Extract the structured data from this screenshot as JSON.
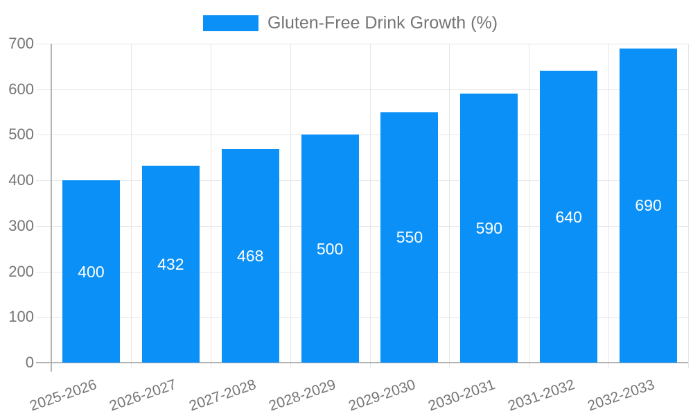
{
  "legend": {
    "label": "Gluten-Free Drink Growth (%)"
  },
  "chart_data": {
    "type": "bar",
    "title": "",
    "legend_position": "top",
    "categories": [
      "2025-2026",
      "2026-2027",
      "2027-2028",
      "2028-2029",
      "2029-2030",
      "2030-2031",
      "2031-2032",
      "2032-2033"
    ],
    "series": [
      {
        "name": "Gluten-Free Drink Growth (%)",
        "values": [
          400,
          432,
          468,
          500,
          550,
          590,
          640,
          690
        ]
      }
    ],
    "xlabel": "",
    "ylabel": "",
    "ylim": [
      0,
      700
    ],
    "yticks": [
      0,
      100,
      200,
      300,
      400,
      500,
      600,
      700
    ],
    "grid": true,
    "colors": {
      "bar": "#0a90f6",
      "axis_text": "#757575",
      "gridline": "#e6e6e6",
      "axis_line": "#b3b3b3",
      "data_label": "#ffffff",
      "background": "#ffffff"
    }
  }
}
